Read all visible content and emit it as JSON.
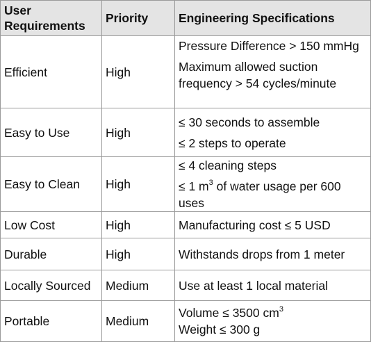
{
  "headers": {
    "req": "User Requirements",
    "priority": "Priority",
    "spec": "Engineering Specifications"
  },
  "rows": [
    {
      "requirement": "Efficient",
      "priority": "High",
      "specs": [
        "Pressure Difference > 150 mmHg",
        "Maximum allowed suction frequency > 54 cycles/minute"
      ]
    },
    {
      "requirement": "Easy to Use",
      "priority": "High",
      "specs": [
        "≤ 30 seconds to assemble",
        "≤ 2 steps to operate"
      ]
    },
    {
      "requirement": "Easy to Clean",
      "priority": "High",
      "specs": [
        "≤ 4 cleaning steps",
        {
          "before": "≤ 1 m",
          "sup": "3",
          "after": " of water usage per 600 uses"
        }
      ]
    },
    {
      "requirement": "Low Cost",
      "priority": "High",
      "specs": [
        "Manufacturing cost ≤ 5 USD"
      ]
    },
    {
      "requirement": "Durable",
      "priority": "High",
      "specs": [
        "Withstands drops from 1 meter"
      ]
    },
    {
      "requirement": "Locally Sourced",
      "priority": "Medium",
      "specs": [
        "Use at least 1 local material"
      ]
    },
    {
      "requirement": "Portable",
      "priority": "Medium",
      "specs": [
        {
          "before": "Volume ≤ 3500 cm",
          "sup": "3",
          "after": ""
        },
        "Weight ≤ 300 g"
      ]
    }
  ]
}
